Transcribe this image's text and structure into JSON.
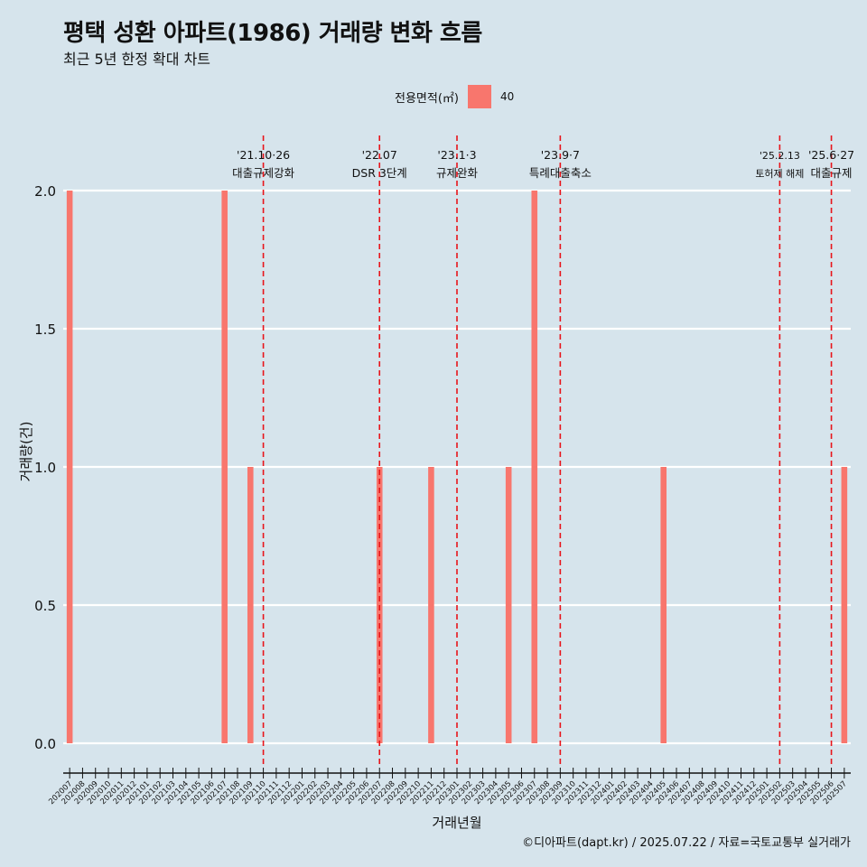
{
  "title": "평택 성환 아파트(1986) 거래량 변화 흐름",
  "subtitle": "최근 5년 한정 확대 차트",
  "legend": {
    "title": "전용면적(㎡)",
    "label": "40",
    "color": "#f8766d"
  },
  "caption": "©디아파트(dapt.kr) / 2025.07.22 / 자료=국토교통부 실거래가",
  "chart_data": {
    "type": "bar",
    "xlabel": "거래년월",
    "ylabel": "거래량(건)",
    "ylim": [
      0,
      2
    ],
    "yticks": [
      "0.0",
      "0.5",
      "1.0",
      "1.5",
      "2.0"
    ],
    "grid": true,
    "legend_position": "top",
    "categories": [
      "202007",
      "202008",
      "202009",
      "202010",
      "202011",
      "202012",
      "202101",
      "202102",
      "202103",
      "202104",
      "202105",
      "202106",
      "202107",
      "202108",
      "202109",
      "202110",
      "202111",
      "202112",
      "202201",
      "202202",
      "202203",
      "202204",
      "202205",
      "202206",
      "202207",
      "202208",
      "202209",
      "202210",
      "202211",
      "202212",
      "202301",
      "202302",
      "202303",
      "202304",
      "202305",
      "202306",
      "202307",
      "202308",
      "202309",
      "202310",
      "202311",
      "202312",
      "202401",
      "202402",
      "202403",
      "202404",
      "202405",
      "202406",
      "202407",
      "202408",
      "202409",
      "202410",
      "202411",
      "202412",
      "202501",
      "202502",
      "202503",
      "202504",
      "202505",
      "202506",
      "202507"
    ],
    "series": [
      {
        "name": "40",
        "color": "#f8766d",
        "values": [
          2,
          0,
          0,
          0,
          0,
          0,
          0,
          0,
          0,
          0,
          0,
          0,
          2,
          0,
          1,
          0,
          0,
          0,
          0,
          0,
          0,
          0,
          0,
          0,
          1,
          0,
          0,
          0,
          1,
          0,
          0,
          0,
          0,
          0,
          1,
          0,
          2,
          0,
          0,
          0,
          0,
          0,
          0,
          0,
          0,
          0,
          1,
          0,
          0,
          0,
          0,
          0,
          0,
          0,
          0,
          0,
          0,
          0,
          0,
          0,
          1
        ]
      }
    ],
    "annotations": [
      {
        "x": "202110",
        "date": "'21.10·26",
        "label": "대출규제강화",
        "small": false
      },
      {
        "x": "202207",
        "date": "'22.07",
        "label": "DSR 3단계",
        "small": false
      },
      {
        "x": "202301",
        "date": "'23.1·3",
        "label": "규제완화",
        "small": false
      },
      {
        "x": "202309",
        "date": "'23.9·7",
        "label": "특례대출축소",
        "small": false
      },
      {
        "x": "202502",
        "date": "'25.2.13",
        "label": "토허제 해제",
        "small": true
      },
      {
        "x": "202506",
        "date": "'25.6·27",
        "label": "대출규제",
        "small": false
      }
    ]
  }
}
